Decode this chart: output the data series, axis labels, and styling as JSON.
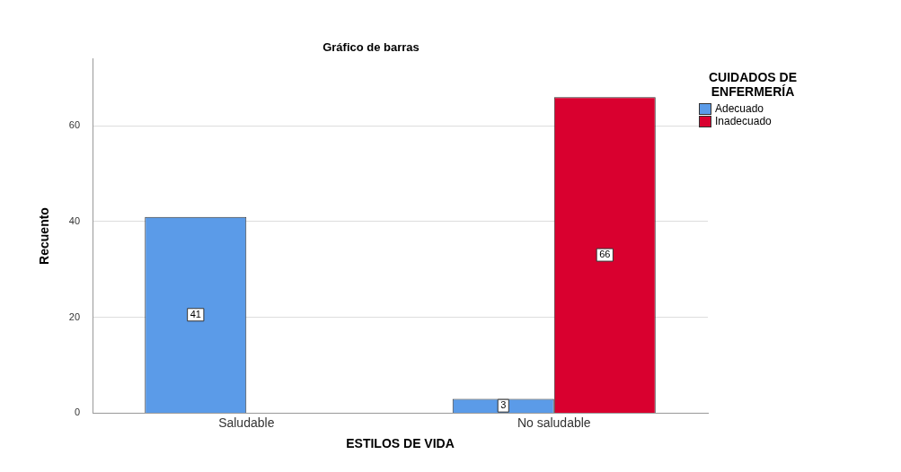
{
  "chart_data": {
    "type": "bar",
    "title": "Gráfico de barras",
    "xlabel": "ESTILOS DE VIDA",
    "ylabel": "Recuento",
    "legend_title": "CUIDADOS DE ENFERMERÍA",
    "categories": [
      "Saludable",
      "No saludable"
    ],
    "series": [
      {
        "name": "Adecuado",
        "color": "#5b9be8",
        "values": [
          41,
          3
        ]
      },
      {
        "name": "Inadecuado",
        "color": "#d9002f",
        "values": [
          null,
          66
        ]
      }
    ],
    "ylim": [
      0,
      74
    ],
    "yticks": [
      0,
      20,
      40,
      60
    ],
    "grid": "y",
    "legend": "top right",
    "data_labels": true
  }
}
